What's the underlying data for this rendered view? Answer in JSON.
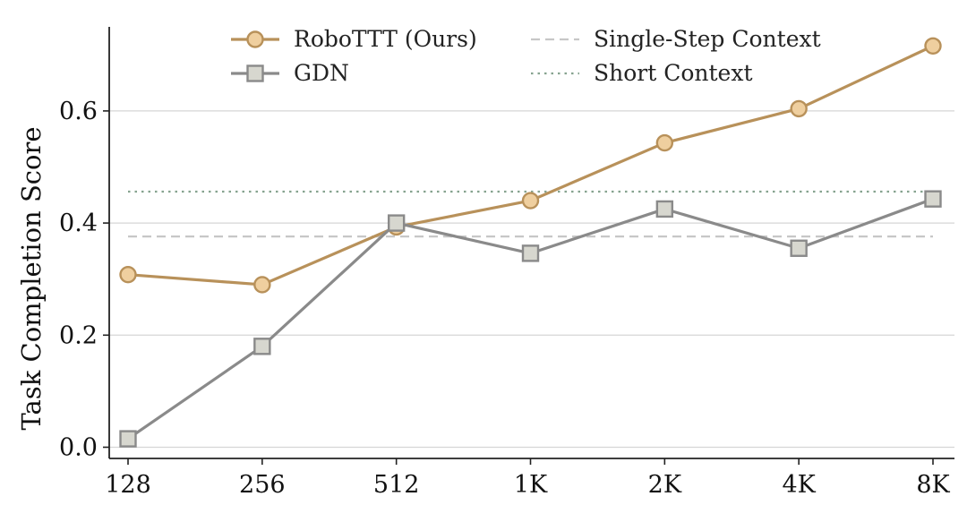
{
  "chart_data": {
    "type": "line",
    "categories": [
      "128",
      "256",
      "512",
      "1K",
      "2K",
      "4K",
      "8K"
    ],
    "ylabel": "Task Completion Score",
    "yticks": [
      "0.0",
      "0.2",
      "0.4",
      "0.6"
    ],
    "ylim": [
      -0.02,
      0.75
    ],
    "grid": "horizontal",
    "legend_position": "top",
    "series": [
      {
        "name": "RoboTTT (Ours)",
        "values": [
          0.308,
          0.29,
          0.393,
          0.44,
          0.543,
          0.604,
          0.716
        ],
        "color": "#b8915a",
        "marker_fill": "#efcf9f",
        "marker": "circle",
        "line_style": "solid"
      },
      {
        "name": "GDN",
        "values": [
          0.015,
          0.18,
          0.4,
          0.346,
          0.425,
          0.355,
          0.443
        ],
        "color": "#8a8a8a",
        "marker_fill": "#d7d7cf",
        "marker": "square",
        "line_style": "solid"
      }
    ],
    "reference_lines": [
      {
        "name": "Single-Step Context",
        "value": 0.376,
        "color": "#c7c7c7",
        "line_style": "dashed"
      },
      {
        "name": "Short Context",
        "value": 0.456,
        "color": "#86a38f",
        "line_style": "dotted"
      }
    ]
  }
}
